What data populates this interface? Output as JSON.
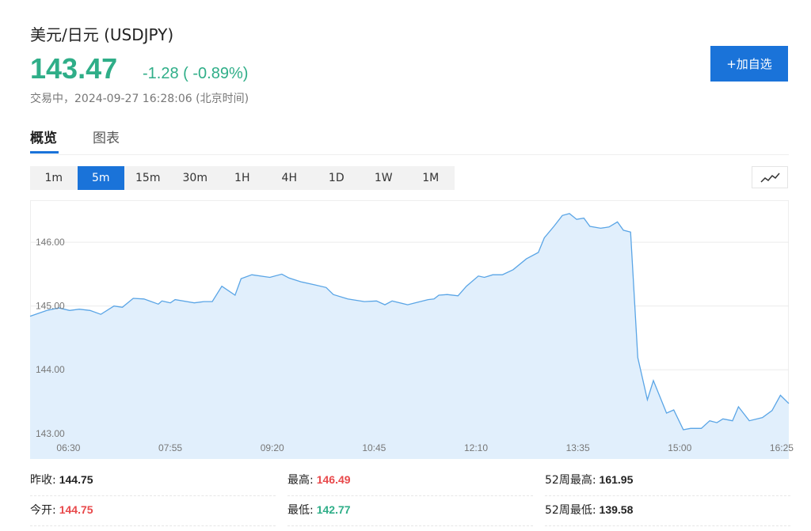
{
  "header": {
    "title": "美元/日元 (USDJPY)",
    "price": "143.47",
    "change": "-1.28 ( -0.89%)",
    "status": "交易中，2024-09-27 16:28:06 (北京时间)"
  },
  "button": "+加自选",
  "tabs": [
    "概览",
    "图表"
  ],
  "periods": [
    "1m",
    "5m",
    "15m",
    "30m",
    "1H",
    "4H",
    "1D",
    "1W",
    "1M"
  ],
  "active_period": 1,
  "chart_data": {
    "type": "area",
    "color": "#5aa5e6",
    "fill": "#e1effc",
    "grid": true,
    "x": [
      "05:58",
      "06:12",
      "06:22",
      "06:31",
      "06:39",
      "06:48",
      "06:57",
      "07:08",
      "07:15",
      "07:24",
      "07:33",
      "07:45",
      "07:48",
      "07:55",
      "07:59",
      "08:15",
      "08:23",
      "08:30",
      "08:38",
      "08:49",
      "08:54",
      "09:03",
      "09:18",
      "09:28",
      "09:34",
      "09:44",
      "09:56",
      "10:05",
      "10:11",
      "10:23",
      "10:37",
      "10:47",
      "10:54",
      "11:00",
      "11:13",
      "11:30",
      "11:35",
      "11:39",
      "11:46",
      "11:55",
      "12:02",
      "12:12",
      "12:17",
      "12:24",
      "12:32",
      "12:41",
      "12:52",
      "13:02",
      "13:07",
      "13:15",
      "13:22",
      "13:28",
      "13:34",
      "13:40",
      "13:45",
      "13:54",
      "14:01",
      "14:08",
      "14:13",
      "14:19",
      "14:25",
      "14:33",
      "14:38",
      "14:49",
      "14:55",
      "15:03",
      "15:09",
      "15:18",
      "15:25",
      "15:31",
      "15:36",
      "15:44",
      "15:49",
      "15:58",
      "16:09",
      "16:17",
      "16:24",
      "16:31"
    ],
    "values": [
      144.84,
      144.93,
      144.97,
      144.93,
      144.95,
      144.93,
      144.87,
      145.0,
      144.98,
      145.12,
      145.11,
      145.03,
      145.08,
      145.05,
      145.1,
      145.05,
      145.07,
      145.07,
      145.31,
      145.17,
      145.43,
      145.49,
      145.45,
      145.5,
      145.44,
      145.38,
      145.33,
      145.29,
      145.18,
      145.11,
      145.07,
      145.08,
      145.02,
      145.08,
      145.02,
      145.1,
      145.11,
      145.17,
      145.18,
      145.16,
      145.31,
      145.47,
      145.45,
      145.49,
      145.49,
      145.57,
      145.74,
      145.84,
      146.07,
      146.25,
      146.42,
      146.45,
      146.36,
      146.38,
      146.25,
      146.22,
      146.24,
      146.32,
      146.19,
      146.16,
      144.19,
      143.53,
      143.83,
      143.32,
      143.37,
      143.06,
      143.08,
      143.08,
      143.2,
      143.17,
      143.23,
      143.2,
      143.42,
      143.2,
      143.25,
      143.36,
      143.6,
      143.47
    ],
    "xlim": [
      "05:58",
      "16:31"
    ],
    "ylim": [
      142.6,
      146.66
    ],
    "xticks": [
      "06:30",
      "07:55",
      "09:20",
      "10:45",
      "12:10",
      "13:35",
      "15:00",
      "16:25"
    ],
    "yticks": [
      {
        "value": 143,
        "label": "143.00"
      },
      {
        "value": 144,
        "label": "144.00"
      },
      {
        "value": 145,
        "label": "145.00"
      },
      {
        "value": 146,
        "label": "146.00"
      }
    ]
  },
  "stats": [
    [
      {
        "label": "昨收:",
        "value": "144.75",
        "color": "#222222"
      },
      {
        "label": "最高:",
        "value": "146.49",
        "color": "#e8494b"
      },
      {
        "label": "52周最高:",
        "value": "161.95",
        "color": "#222222"
      }
    ],
    [
      {
        "label": "今开:",
        "value": "144.75",
        "color": "#e8494b"
      },
      {
        "label": "最低:",
        "value": "142.77",
        "color": "#2fae88"
      },
      {
        "label": "52周最低:",
        "value": "139.58",
        "color": "#222222"
      }
    ]
  ]
}
